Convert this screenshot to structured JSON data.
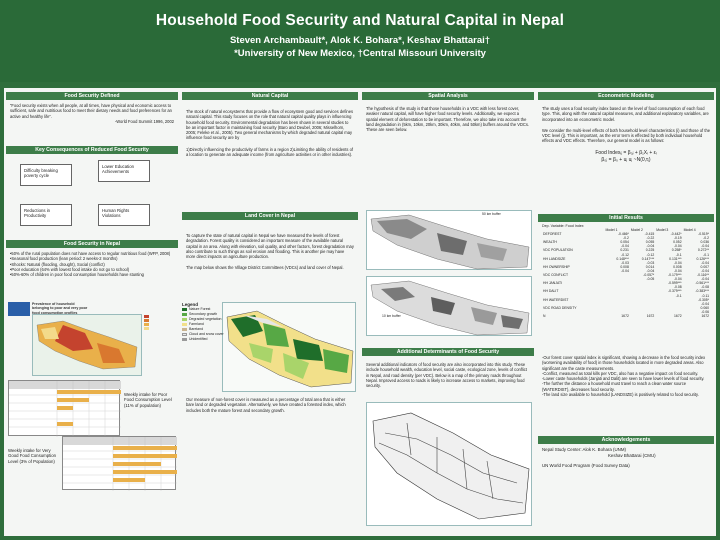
{
  "header": {
    "title": "Household Food Security and Natural Capital in Nepal",
    "authors": "Steven Archambault*, Alok K. Bohara*, Keshav Bhattarai†",
    "affiliation": "*University of New Mexico, †Central Missouri University"
  },
  "col1": {
    "food_security_title": "Food Security Defined",
    "food_security_quote": "“Food security exists when all people, at all times, have physical and economic access to sufficient, safe and nutritious food to meet their dietary needs and food preferences for an active and healthy life”.",
    "food_security_source": "-World Food Summit 1996, 2002",
    "consequences_title": "Key Consequences of Reduced Food Security",
    "consequences": [
      "Difficulty breaking poverty cycle",
      "Lower Education Achievements",
      "Reductions in Productivity",
      "Human Rights Violations"
    ],
    "rural_title": "Food Security in Nepal",
    "rural_bullets": [
      "•50% of the rural population does not have access to regular nutritious food (WFP, 2008)",
      "•Seasonal food production (lean period: 2 weeks-2 months)",
      "•Shocks: Natural (flooding, drought), Social (conflict)",
      "•Poor education (64% with lowest food intake do not go to school)",
      "•50%-60% of children in poor food consumption households have stunting"
    ],
    "map_caption": "Prevalence of household belonging to poor and very poor food consumption profiles",
    "weekly_poor": "Weekly intake for Poor Food Consumption Level (11% of population)",
    "weekly_good": "Weekly intake for Very Good Food Consumption Level (3% of Population)"
  },
  "col2": {
    "natural_capital_title": "Natural Capital",
    "natural_capital_text": "The stock of natural ecosystems that provide a flow of ecosystem good and services defines natural capital. This study focuses on the role that natural capital quality plays in influencing household food security. Environmental degradation has been shown in several studies to be an important factor in maintaining food security (Baro and Deubel, 2006; Misselhorn, 2005; Feleke et al., 2005). Two general mechanisms by which degraded natural capital may influence food security are by",
    "natural_capital_points": "1)Directly influencing the productivity of farms in a region 2)Limiting the ability of residents of a location to generate an adequate income (from agriculture activities or in other industries).",
    "land_cover_title": "Land Cover in Nepal",
    "land_cover_text": "To capture the state of natural capital in Nepal we have measured the levels of forest degradation. Forest quality is considered an important measure of the available natural capital in an area. Along with elevation, soil quality, and other factors, forest degradation may also contribute to such things as soil erosion and flooding. This is another pie may have more direct impacts on agriculture production.",
    "map_text": "The map below shows the Village District Committees (VDCs) and land cover of Nepal.",
    "legend_title": "Legend",
    "legend": [
      "Nature Forest",
      "Secondary growth",
      "Degraded vegetation",
      "Farmland",
      "Bareland",
      "Cloud and snow cover",
      "Unidentified"
    ],
    "legend_colors": [
      "#1f6e2a",
      "#57a845",
      "#a9d46a",
      "#f2e08a",
      "#c9b38f",
      "#e6e6e6",
      "#9a9a9a"
    ],
    "measure_text": "Our measure of non-forest cover is measured as a percentage of total area that is either bare land or degraded vegetation. Alternatively, we have created a forested index, which includes both the mature forest and secondary growth."
  },
  "col3": {
    "spatial_title": "Spatial Analysis",
    "spatial_text": "The hypothesis of the study is that those households in a VDC with less forest cover, weaker natural capital, will have higher food security levels. Additionally, we expect a spatial element of deforestation to be important. Therefore, we also take into account the land degradation in (5km, 10km, 20km, 30km, 40km, and 50km) buffers around the VDCs. These are seen below.",
    "buffer_label_1": "50 km buffer",
    "buffer_label_2": "10 km buffer",
    "additional_title": "Additional Determinants of Food Security",
    "additional_text": "Several additional indicators of food security are also incorporated into this study. These include household wealth, education level, social caste, ecological zone, levels of conflict in Nepal, and road density (per VDC). Below is a map of the primary roads throughout Nepal. Improved access to roads is likely to increase access to markets, improving food security."
  },
  "col4": {
    "econ_title": "Econometric Modeling",
    "econ_text": "The study uses a food security index based on the level of food consumption of each food type. This, along with the natural capital measures, and additional explanatory variables, are incorporated into an econometric model.",
    "econ_text2": "We consider the multi-level effects of both household level characteristics (i) and those of the VDC level (j). This is important, as the error term is effected by both individual household effects and VDC effects. Therefore, our general model is as follows:",
    "eq1": "Food Indexᵢⱼ = β₀ⱼ + β₁Xᵢ + εᵢ",
    "eq2": "β₀ⱼ = β₀ + uⱼ        uⱼ ~N(0,τⱼ)",
    "results_title": "Initial Results",
    "table": {
      "caption": "Dep. Variable: Food Index",
      "headers": [
        "",
        "Model 1",
        "Model 2",
        "Model 3",
        "Model 4"
      ],
      "rows": [
        [
          "DEFOREST",
          "-0.466*",
          "-0.415",
          "-0.442*",
          "-0.519*"
        ],
        [
          "",
          "-0.2",
          "-0.22",
          "-0.19",
          "-0.2"
        ],
        [
          "WEALTH",
          "0.054",
          "0.055",
          "0.052",
          "0.036"
        ],
        [
          "",
          "-0.04",
          "-0.04",
          "-0.04",
          "-0.04"
        ],
        [
          "VDC POPULATION",
          "0.231",
          "0.225",
          "0.258*",
          "0.272**"
        ],
        [
          "",
          "-0.12",
          "-0.12",
          "-0.1",
          "-0.1"
        ],
        [
          "HH LANDSIZE",
          "0.148***",
          "0.147***",
          "0.131***",
          "0.126***"
        ],
        [
          "",
          "-0.03",
          "-0.03",
          "-0.04",
          "-0.04"
        ],
        [
          "HH OWNERSHIP",
          "0.008",
          "0.014",
          "0.008",
          "0.007"
        ],
        [
          "",
          "-0.04",
          "-0.04",
          "-0.04",
          "-0.04"
        ],
        [
          "VDC CONFLICT",
          "",
          "-0.057*",
          "-0.179***",
          "-0.116**"
        ],
        [
          "",
          "",
          "-0.05",
          "-0.04",
          "-0.04"
        ],
        [
          "HH JANJATI",
          "",
          "",
          "-0.599***",
          "-0.561***"
        ],
        [
          "",
          "",
          "",
          "-0.08",
          "-0.08"
        ],
        [
          "HH DALIT",
          "",
          "",
          "-0.379***",
          "-0.383***"
        ],
        [
          "",
          "",
          "",
          "-0.1",
          "-0.11"
        ],
        [
          "HH WATERDIST",
          "",
          "",
          "",
          "-0.305*"
        ],
        [
          "",
          "",
          "",
          "",
          "-0.04"
        ],
        [
          "VDC ROAD DENSITY",
          "",
          "",
          "",
          "0.060"
        ],
        [
          "",
          "",
          "",
          "",
          "-0.06"
        ],
        [
          "N",
          "1672",
          "1672",
          "1672",
          "1672"
        ]
      ]
    },
    "results_bullets": [
      "-Our forest cover spatial index is significant, showing a decrease in the food security index (worsening availability of food) in those households located in more degraded areas. Also significant are the caste measurements.",
      "-Conflict, measured as total kills per VDC, also has a negative impact on food security.",
      "-Lower caste households (Janjati and Dalit) are seen to have lower levels of food security.",
      "-The further the distance a household must travel to reach a clean water source (WATERDIST), decreases food security.",
      "-The land size available to household (LANDSIZE) is positively related to food security."
    ],
    "ack_title": "Acknowledgements",
    "ack_line1": "Nepal Study Center: Alok K. Bohara (UNM)",
    "ack_line2": "Keshav Bhattarai (CMU)",
    "ack_line3": "UN World Food Program (Food Survey Data)"
  }
}
